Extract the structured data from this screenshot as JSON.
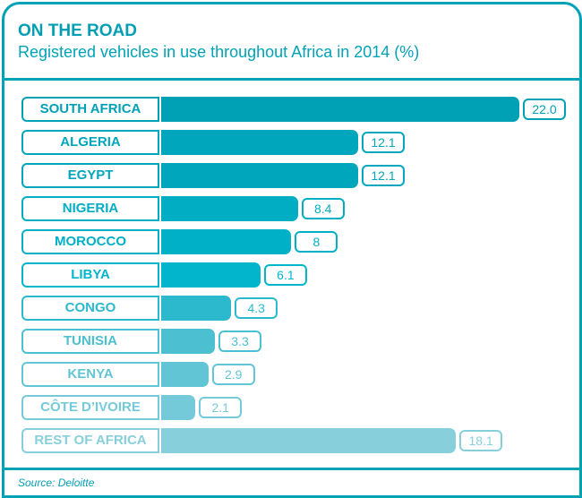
{
  "chart_data": {
    "type": "bar",
    "orientation": "horizontal",
    "title": "ON THE ROAD",
    "subtitle": "Registered vehicles in use throughout Africa in 2014 (%)",
    "categories": [
      "SOUTH AFRICA",
      "ALGERIA",
      "EGYPT",
      "NIGERIA",
      "MOROCCO",
      "LIBYA",
      "CONGO",
      "TUNISIA",
      "KENYA",
      "CÔTE D’IVOIRE",
      "REST OF AFRICA"
    ],
    "values": [
      22.0,
      12.1,
      12.1,
      8.4,
      8,
      6.1,
      4.3,
      3.3,
      2.9,
      2.1,
      18.1
    ],
    "value_labels": [
      "22.0",
      "12.1",
      "12.1",
      "8.4",
      "8",
      "6.1",
      "4.3",
      "3.3",
      "2.9",
      "2.1",
      "18.1"
    ],
    "colors": [
      "#00a0b5",
      "#00a6bb",
      "#00a6bb",
      "#00adc3",
      "#00b0c6",
      "#02b5cc",
      "#2cb9cd",
      "#4cbfd1",
      "#62c5d5",
      "#74cad9",
      "#88cfdc"
    ],
    "xlim": [
      0,
      22
    ],
    "source": "Source: Deloitte"
  }
}
